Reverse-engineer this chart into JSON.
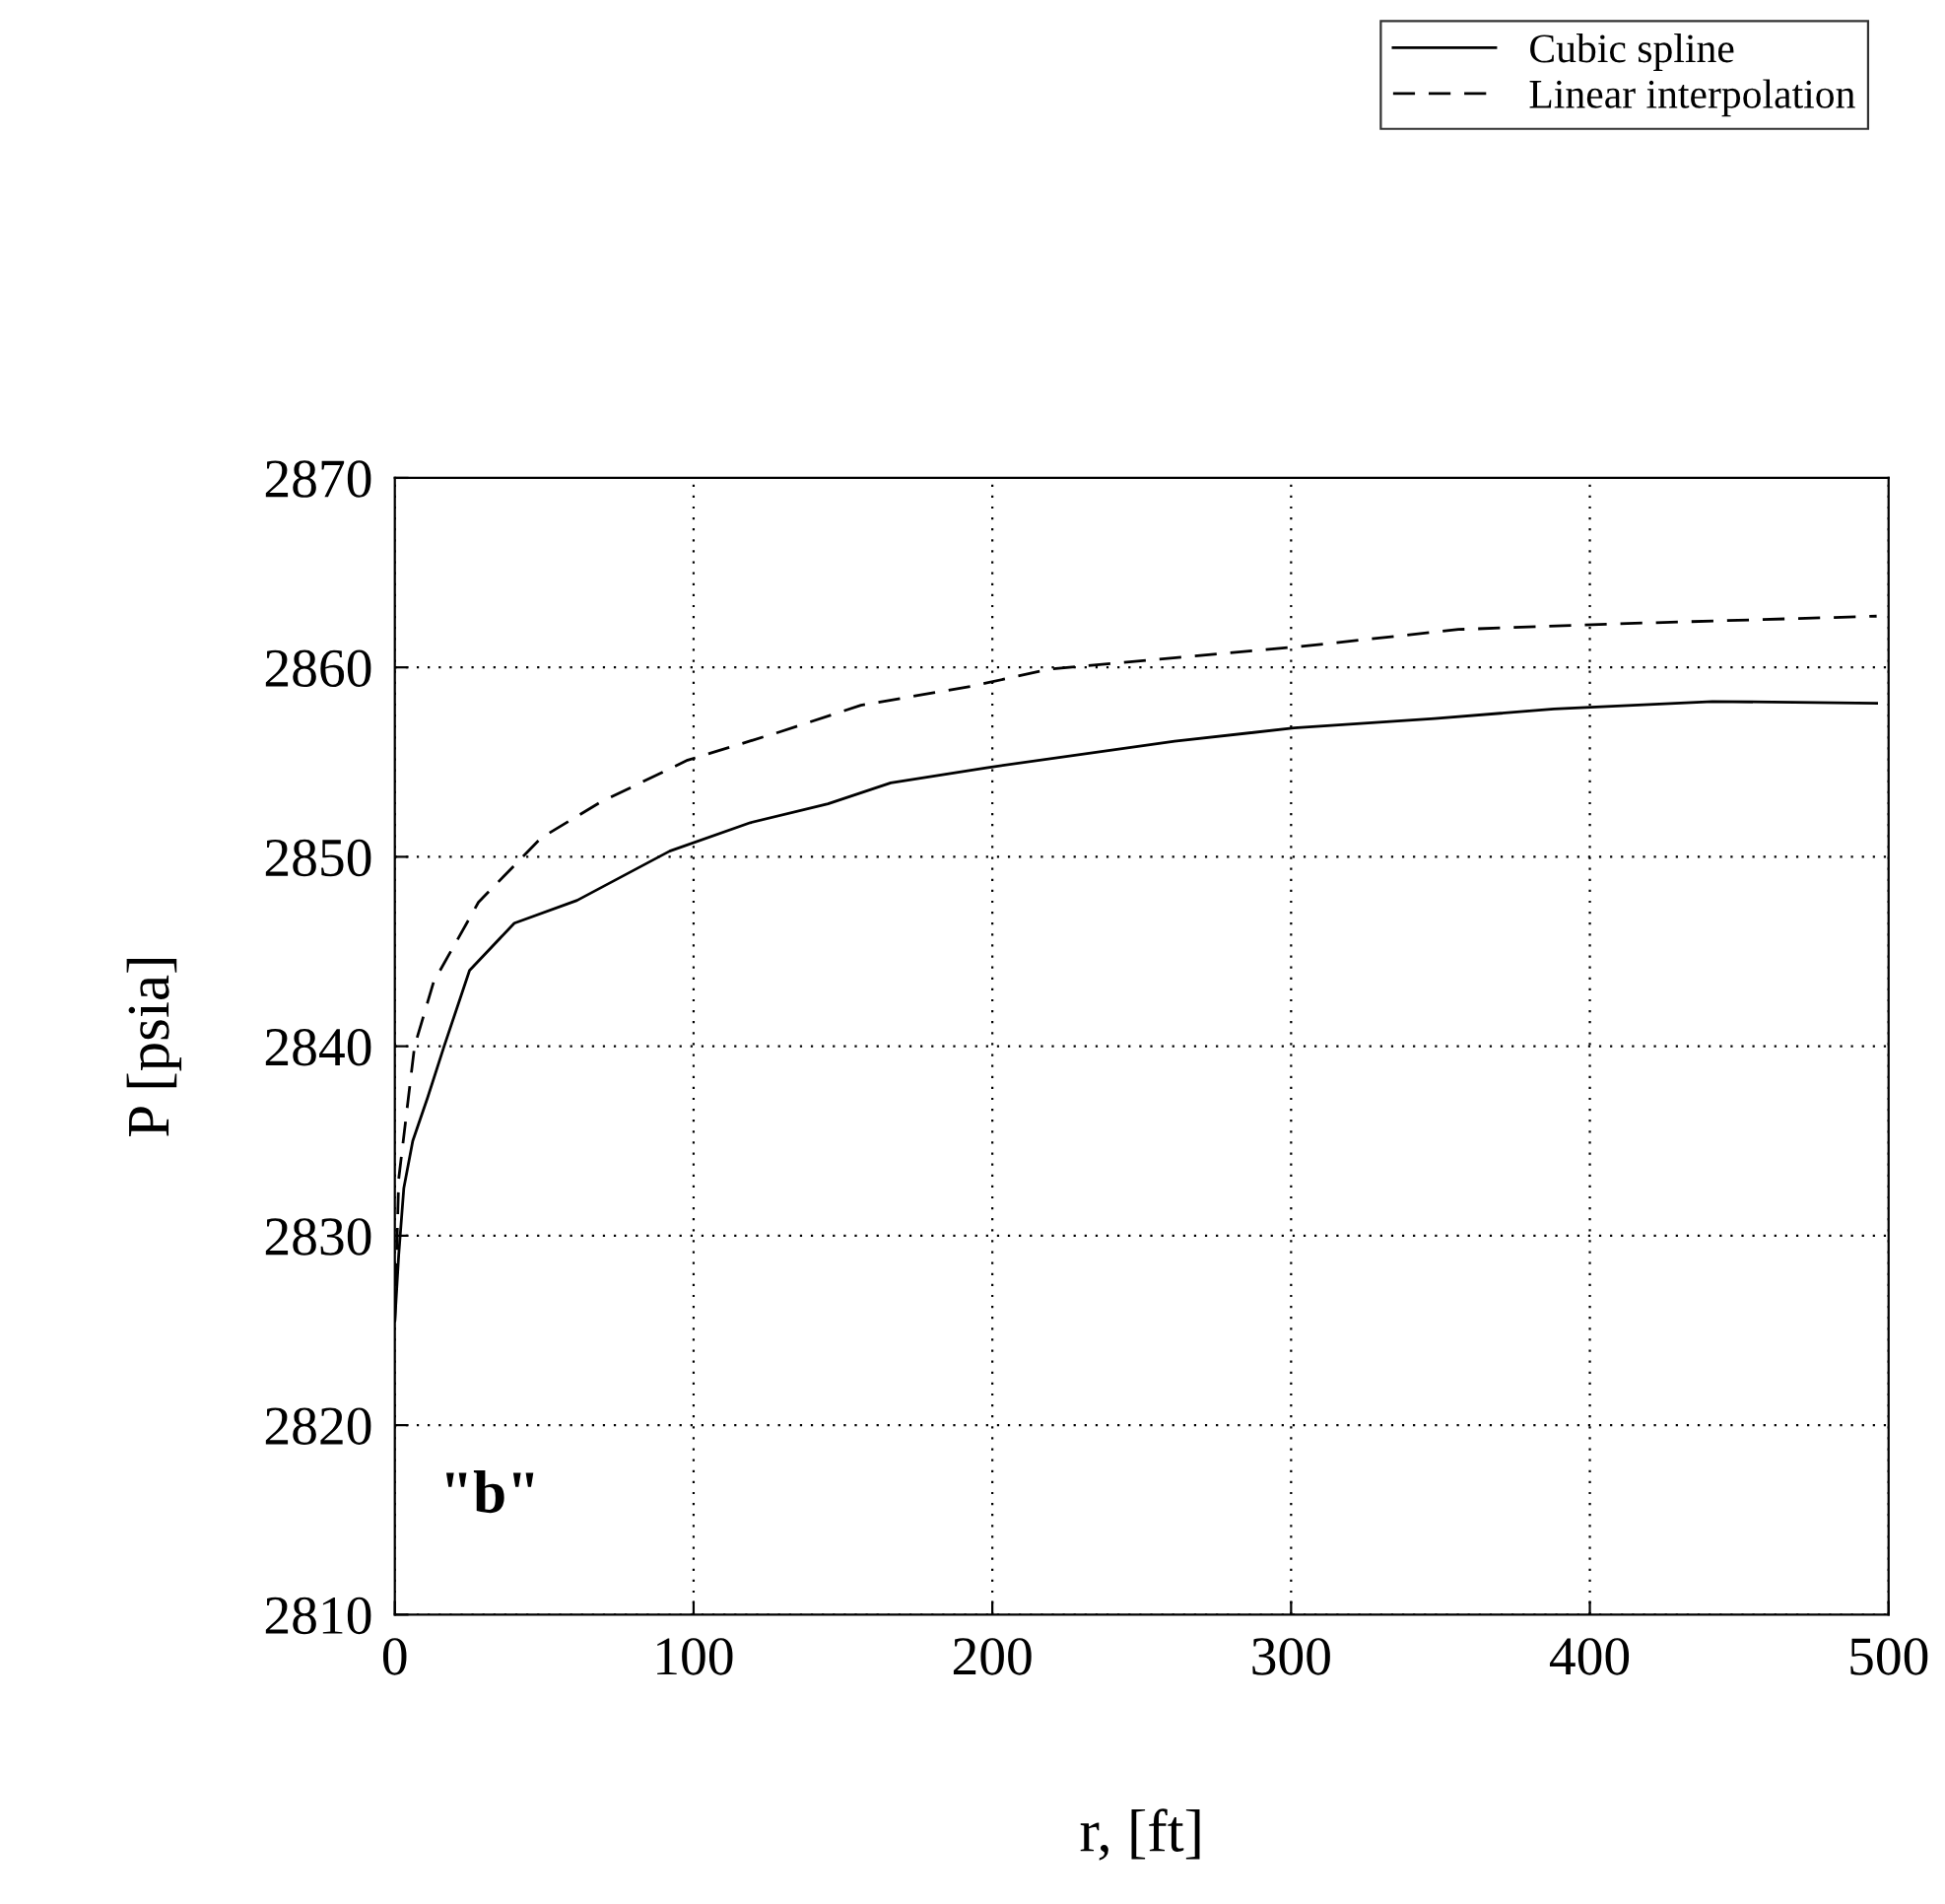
{
  "chart_data": {
    "type": "line",
    "xlabel": "r, [ft]",
    "ylabel": "P [psia]",
    "xlim": [
      0,
      500
    ],
    "ylim": [
      2810,
      2870
    ],
    "xticks": [
      0,
      100,
      200,
      300,
      400,
      500
    ],
    "yticks": [
      2810,
      2820,
      2830,
      2840,
      2850,
      2860,
      2870
    ],
    "grid": true,
    "legend": "top right",
    "marker": "none",
    "annotations": [
      "\"b\""
    ],
    "series": [
      {
        "name": "Cubic spline",
        "color": "#000000",
        "line_style": "solid",
        "x": [
          0,
          1.3,
          3,
          6,
          11,
          16.5,
          25,
          40,
          61,
          92,
          119,
          145,
          166,
          198,
          261,
          301,
          348,
          388,
          441,
          496
        ],
        "values": [
          2825.5,
          2829,
          2832.5,
          2835,
          2837.3,
          2840,
          2844,
          2846.5,
          2847.7,
          2850.3,
          2851.8,
          2852.8,
          2853.9,
          2854.7,
          2856.1,
          2856.8,
          2857.3,
          2857.8,
          2858.2,
          2858.1
        ]
      },
      {
        "name": "Linear interpolation",
        "color": "#000000",
        "line_style": "dashed",
        "x": [
          0,
          1.3,
          6.6,
          13,
          28,
          49,
          69,
          98,
          129,
          156,
          193,
          219,
          303,
          356,
          409,
          496
        ],
        "values": [
          2825.5,
          2833,
          2840,
          2843.4,
          2847.6,
          2851,
          2852.9,
          2855.1,
          2856.6,
          2858,
          2859,
          2859.9,
          2861.1,
          2862,
          2862.3,
          2862.7
        ]
      }
    ]
  }
}
